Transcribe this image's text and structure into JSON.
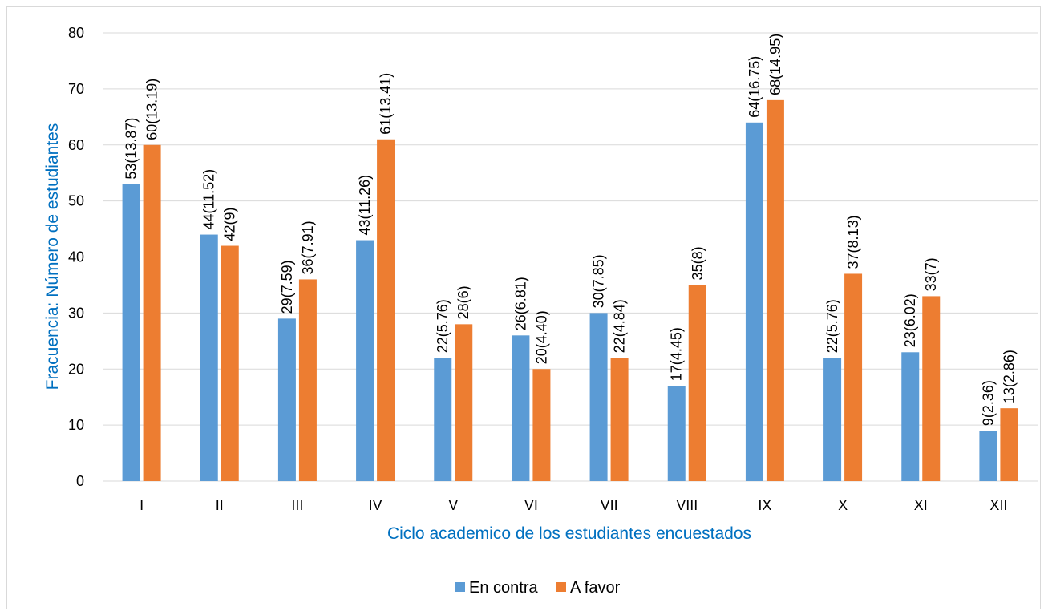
{
  "chart_data": {
    "type": "bar",
    "categories": [
      "I",
      "II",
      "III",
      "IV",
      "V",
      "VI",
      "VII",
      "VIII",
      "IX",
      "X",
      "XI",
      "XII"
    ],
    "series": [
      {
        "name": "En contra",
        "color": "#5b9bd5",
        "values": [
          53,
          44,
          29,
          43,
          22,
          26,
          30,
          17,
          64,
          22,
          23,
          9
        ],
        "labels": [
          "53(13.87)",
          "44(11.52)",
          "29(7.59)",
          "43(11.26)",
          "22(5.76)",
          "26(6.81)",
          "30(7.85)",
          "17(4.45)",
          "64(16.75)",
          "22(5.76)",
          "23(6.02)",
          "9(2.36)"
        ]
      },
      {
        "name": "A favor",
        "color": "#ed7d31",
        "values": [
          60,
          42,
          36,
          61,
          28,
          20,
          22,
          35,
          68,
          37,
          33,
          13
        ],
        "labels": [
          "60(13.19)",
          "42(9)",
          "36(7.91)",
          "61(13.41)",
          "28(6)",
          "20(4.40)",
          "22(4.84)",
          "35(8)",
          "68(14.95)",
          "37(8.13)",
          "33(7)",
          "13(2.86)"
        ]
      }
    ],
    "xlabel": "Ciclo academico de los estudiantes encuestados",
    "ylabel": "Fracuencia: Número de estudiantes",
    "ylim": [
      0,
      80
    ],
    "yticks": [
      0,
      10,
      20,
      30,
      40,
      50,
      60,
      70,
      80
    ],
    "grid": true,
    "legend_position": "bottom",
    "gridline_color": "#d9d9d9"
  }
}
